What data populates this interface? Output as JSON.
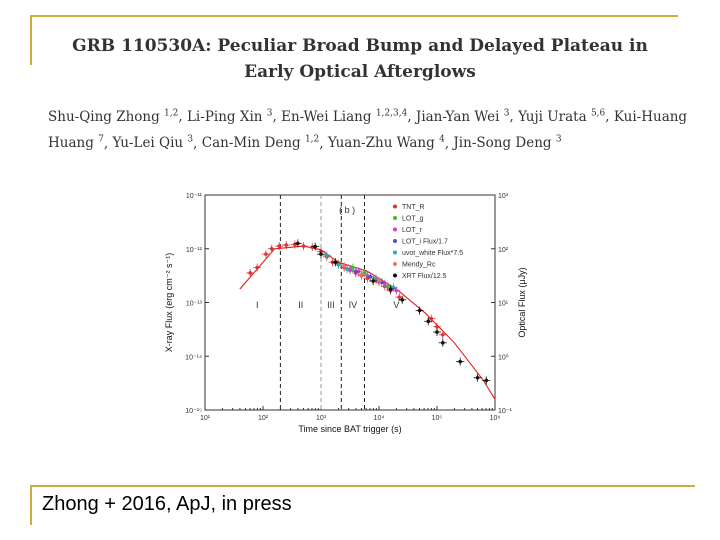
{
  "paper": {
    "title_line1": "GRB 110530A: Peculiar Broad Bump and Delayed Plateau in",
    "title_line2": "Early Optical Afterglows",
    "authors": [
      {
        "name": "Shu-Qing Zhong",
        "aff": "1,2"
      },
      {
        "name": "Li-Ping Xin",
        "aff": "3"
      },
      {
        "name": "En-Wei Liang",
        "aff": "1,2,3,4"
      },
      {
        "name": "Jian-Yan Wei",
        "aff": "3"
      },
      {
        "name": "Yuji Urata",
        "aff": "5,6"
      },
      {
        "name": "Kui-Huang Huang",
        "aff": "7"
      },
      {
        "name": "Yu-Lei Qiu",
        "aff": "3"
      },
      {
        "name": "Can-Min Deng",
        "aff": "1,2"
      },
      {
        "name": "Yuan-Zhu Wang",
        "aff": "4"
      },
      {
        "name": "Jin-Song Deng",
        "aff": "3"
      }
    ]
  },
  "caption": "Zhong + 2016, ApJ, in press",
  "colors": {
    "accent": "#c8b040",
    "model": "#e02020"
  },
  "chart_data": {
    "type": "scatter",
    "panel_label": "( b )",
    "xlabel": "Time since BAT trigger (s)",
    "ylabel_left": "X-ray Flux (erg cm⁻² s⁻¹)",
    "ylabel_right": "Optical Flux (μJy)",
    "x_log_range": [
      1,
      6
    ],
    "y_left_log_range": [
      -15,
      -11
    ],
    "y_right_log_range": [
      -1,
      3
    ],
    "x_tick_labels": [
      "10¹",
      "10²",
      "10³",
      "10⁴",
      "10⁵",
      "10⁶"
    ],
    "y_left_tick_labels": [
      "10⁻¹¹",
      "10⁻¹²",
      "10⁻¹³",
      "10⁻¹⁴",
      "10⁻¹⁵"
    ],
    "y_right_tick_labels": [
      "10³",
      "10²",
      "10¹",
      "10⁰",
      "10⁻¹"
    ],
    "vlines_log_t": [
      2.3,
      3.0,
      3.35,
      3.75
    ],
    "region_labels": [
      {
        "text": "I",
        "log_t": 1.9
      },
      {
        "text": "II",
        "log_t": 2.65
      },
      {
        "text": "III",
        "log_t": 3.17
      },
      {
        "text": "IV",
        "log_t": 3.55
      },
      {
        "text": "V",
        "log_t": 4.3
      }
    ],
    "legend": [
      {
        "label": "TNT_R",
        "color": "#e03030"
      },
      {
        "label": "LOT_g",
        "color": "#30c030"
      },
      {
        "label": "LOT_r",
        "color": "#d040d0"
      },
      {
        "label": "LOT_i Flux/1.7",
        "color": "#5050d0"
      },
      {
        "label": "uvot_white Flux*7.5",
        "color": "#20b0b0"
      },
      {
        "label": "Mendy_Rc",
        "color": "#f07070"
      },
      {
        "label": "XRT Flux/12.5",
        "color": "#111111"
      }
    ],
    "model_curve": {
      "log_t": [
        1.6,
        2.2,
        2.7,
        3.0,
        3.3,
        3.8,
        4.3,
        4.8,
        5.3,
        5.8,
        6.0
      ],
      "log_f": [
        -12.75,
        -12.0,
        -11.95,
        -12.02,
        -12.25,
        -12.42,
        -12.75,
        -13.2,
        -13.75,
        -14.45,
        -14.8
      ]
    },
    "series": [
      {
        "name": "TNT_R",
        "points": [
          [
            1.78,
            -12.45
          ],
          [
            1.9,
            -12.35
          ],
          [
            2.05,
            -12.1
          ],
          [
            2.15,
            -12.0
          ],
          [
            2.28,
            -11.95
          ],
          [
            2.4,
            -11.93
          ],
          [
            2.55,
            -11.92
          ],
          [
            2.7,
            -11.95
          ],
          [
            2.85,
            -11.97
          ],
          [
            3.0,
            -12.05
          ],
          [
            3.1,
            -12.15
          ],
          [
            3.2,
            -12.25
          ],
          [
            3.3,
            -12.28
          ],
          [
            3.4,
            -12.35
          ],
          [
            3.5,
            -12.4
          ],
          [
            3.6,
            -12.45
          ],
          [
            3.7,
            -12.5
          ],
          [
            3.8,
            -12.55
          ],
          [
            3.9,
            -12.6
          ],
          [
            4.0,
            -12.62
          ],
          [
            4.1,
            -12.7
          ],
          [
            4.2,
            -12.78
          ],
          [
            4.35,
            -12.9
          ],
          [
            4.9,
            -13.3
          ],
          [
            5.0,
            -13.45
          ],
          [
            5.1,
            -13.6
          ]
        ]
      },
      {
        "name": "LOT_g",
        "points": [
          [
            3.55,
            -12.35
          ],
          [
            3.75,
            -12.45
          ],
          [
            3.95,
            -12.55
          ],
          [
            4.15,
            -12.7
          ]
        ]
      },
      {
        "name": "LOT_r",
        "points": [
          [
            3.5,
            -12.38
          ],
          [
            3.65,
            -12.42
          ],
          [
            3.8,
            -12.5
          ],
          [
            3.95,
            -12.58
          ],
          [
            4.1,
            -12.65
          ],
          [
            4.3,
            -12.78
          ]
        ]
      },
      {
        "name": "LOT_i Flux/1.7",
        "points": [
          [
            3.6,
            -12.42
          ],
          [
            3.85,
            -12.52
          ],
          [
            4.05,
            -12.62
          ]
        ]
      },
      {
        "name": "uvot_white Flux*7.5",
        "points": [
          [
            3.1,
            -12.12
          ],
          [
            3.3,
            -12.3
          ],
          [
            3.45,
            -12.38
          ],
          [
            4.25,
            -12.72
          ]
        ]
      },
      {
        "name": "Mendy_Rc",
        "points": [
          [
            3.4,
            -12.32
          ],
          [
            3.7,
            -12.48
          ],
          [
            4.0,
            -12.6
          ]
        ]
      },
      {
        "name": "XRT Flux/12.5",
        "points": [
          [
            2.6,
            -11.9
          ],
          [
            2.9,
            -11.96
          ],
          [
            3.0,
            -12.1
          ],
          [
            3.25,
            -12.25
          ],
          [
            3.9,
            -12.6
          ],
          [
            4.2,
            -12.75
          ],
          [
            4.4,
            -12.95
          ],
          [
            4.7,
            -13.15
          ],
          [
            4.85,
            -13.35
          ],
          [
            5.0,
            -13.55
          ],
          [
            5.1,
            -13.75
          ],
          [
            5.4,
            -14.1
          ],
          [
            5.7,
            -14.4
          ],
          [
            5.85,
            -14.45
          ]
        ]
      }
    ]
  }
}
